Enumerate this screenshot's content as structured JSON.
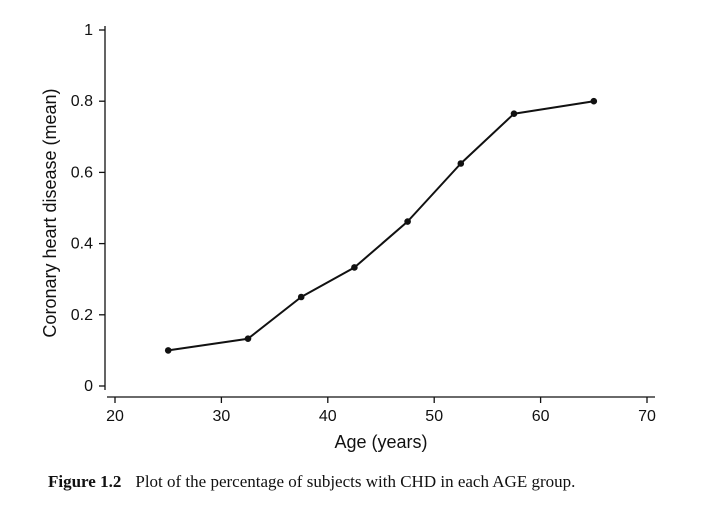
{
  "chart_data": {
    "type": "line",
    "title": "",
    "xlabel": "Age (years)",
    "ylabel": "Coronary heart disease (mean)",
    "xlim": [
      20,
      70
    ],
    "ylim": [
      0,
      1
    ],
    "xticks": [
      "20",
      "30",
      "40",
      "50",
      "60",
      "70"
    ],
    "yticks": [
      "0",
      "0.2",
      "0.4",
      "0.6",
      "0.8",
      "1"
    ],
    "grid": false,
    "series": [
      {
        "x": [
          25,
          32.5,
          37.5,
          42.5,
          47.5,
          52.5,
          57.5,
          65
        ],
        "y": [
          0.1,
          0.133,
          0.25,
          0.333,
          0.462,
          0.625,
          0.765,
          0.8
        ],
        "color": "#111111"
      }
    ]
  },
  "caption": {
    "figure_number": "Figure 1.2",
    "text": "Plot of the percentage of subjects with CHD in each AGE group."
  }
}
